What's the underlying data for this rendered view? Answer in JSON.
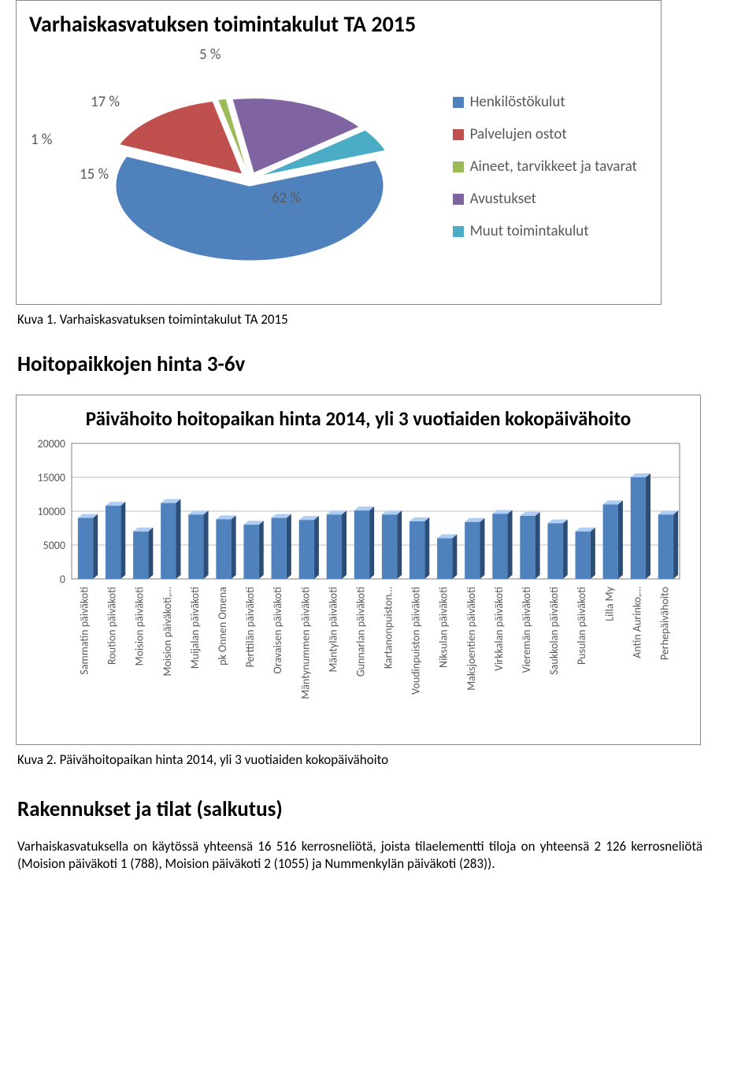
{
  "pie": {
    "title": "Varhaiskasvatuksen toimintakulut TA 2015",
    "slices": [
      {
        "label": "Henkilöstökulut",
        "value": 62,
        "color": "#4f81bd",
        "side": "#385d8a"
      },
      {
        "label": "Palvelujen ostot",
        "value": 15,
        "color": "#c0504d",
        "side": "#8c3836"
      },
      {
        "label": "Aineet, tarvikkeet ja tavarat",
        "value": 1,
        "color": "#9bbb59",
        "side": "#71893f"
      },
      {
        "label": "Avustukset",
        "value": 17,
        "color": "#8064a2",
        "side": "#5c4776"
      },
      {
        "label": "Muut toimintakulut",
        "value": 5,
        "color": "#4bacc6",
        "side": "#357d91"
      }
    ],
    "labels": {
      "p62": "62 %",
      "p15": "15 %",
      "p1": "1 %",
      "p17": "17 %",
      "p5": "5 %"
    },
    "legend_items": [
      {
        "text": "Henkilöstökulut",
        "color": "#4f81bd"
      },
      {
        "text": "Palvelujen ostot",
        "color": "#c0504d"
      },
      {
        "text": "Aineet, tarvikkeet ja tavarat",
        "color": "#9bbb59"
      },
      {
        "text": "Avustukset",
        "color": "#8064a2"
      },
      {
        "text": "Muut toimintakulut",
        "color": "#4bacc6"
      }
    ]
  },
  "caption1": "Kuva 1. Varhaiskasvatuksen toimintakulut TA 2015",
  "heading2": "Hoitopaikkojen hinta 3-6v",
  "bar": {
    "title": "Päivähoito hoitopaikan hinta 2014, yli 3 vuotiaiden kokopäivähoito",
    "ylim": [
      0,
      20000
    ],
    "yticks": [
      0,
      5000,
      10000,
      15000,
      20000
    ],
    "bar_fill": "#4f81bd",
    "bar_top": "#aecdf2",
    "bar_side": "#2c4d75",
    "grid_color": "#bfbfbf",
    "axis_color": "#808080",
    "label_color": "#595959",
    "label_fontsize": 14,
    "tick_fontsize": 14,
    "data": [
      {
        "cat": "Sammatin päiväkoti",
        "val": 9000
      },
      {
        "cat": "Roution päiväkoti",
        "val": 10800
      },
      {
        "cat": "Moision päiväkoti",
        "val": 7000
      },
      {
        "cat": "Moision päiväkoti,…",
        "val": 11200
      },
      {
        "cat": "Muijalan päiväkoti",
        "val": 9500
      },
      {
        "cat": "pk Onnen Omena",
        "val": 8800
      },
      {
        "cat": "Perttilän päiväkoti",
        "val": 8000
      },
      {
        "cat": "Oravaisen päiväkoti",
        "val": 9000
      },
      {
        "cat": "Mäntynummen päiväkoti",
        "val": 8700
      },
      {
        "cat": "Mäntylän päiväkoti",
        "val": 9500
      },
      {
        "cat": "Gunnarlan päiväkoti",
        "val": 10100
      },
      {
        "cat": "Kartanonpuiston…",
        "val": 9500
      },
      {
        "cat": "Voudinpuiston päiväkoti",
        "val": 8500
      },
      {
        "cat": "Niksulan päiväkoti",
        "val": 6000
      },
      {
        "cat": "Maksjoentien päiväkoti",
        "val": 8400
      },
      {
        "cat": "Virkkalan päiväkoti",
        "val": 9600
      },
      {
        "cat": "Vieremän päiväkoti",
        "val": 9300
      },
      {
        "cat": "Saukkolan päiväkoti",
        "val": 8200
      },
      {
        "cat": "Pusulan päiväkoti",
        "val": 7000
      },
      {
        "cat": "Lilla My",
        "val": 11000
      },
      {
        "cat": "Antin Aurinko,…",
        "val": 15000
      },
      {
        "cat": "Perhepäivähoito",
        "val": 9500
      }
    ]
  },
  "caption2": "Kuva 2. Päivähoitopaikan hinta 2014, yli 3 vuotiaiden kokopäivähoito",
  "heading3": "Rakennukset ja tilat (salkutus)",
  "body": "Varhaiskasvatuksella on käytössä yhteensä 16 516 kerrosneliötä, joista tilaelementti tiloja on yhteensä 2 126 kerrosneliötä (Moision päiväkoti 1 (788), Moision päiväkoti 2 (1055) ja Nummenkylän päiväkoti (283))."
}
